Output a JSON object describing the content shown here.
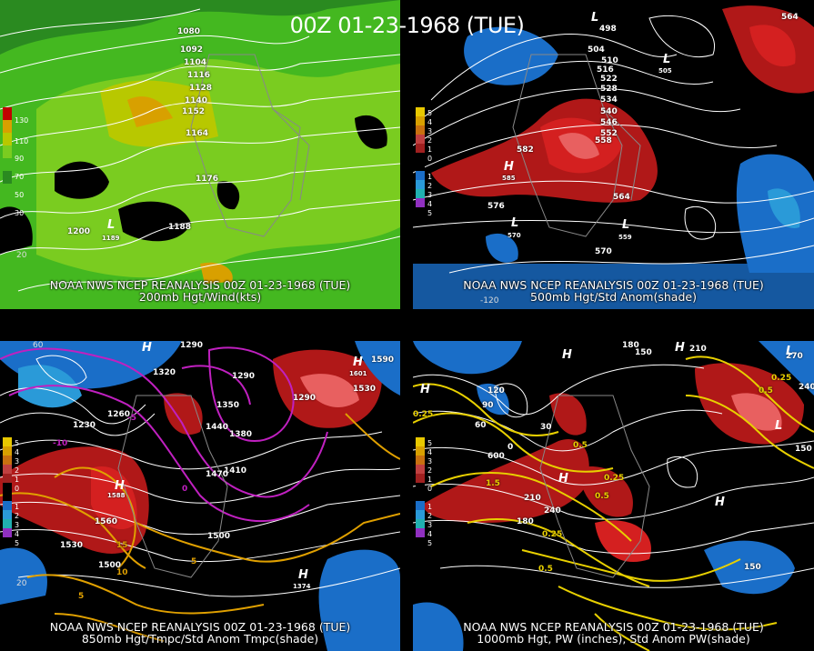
{
  "title": "00Z 01-23-1968 (TUE)",
  "panels": [
    {
      "id": "p200",
      "caption1": "NOAA NWS NCEP REANALYSIS 00Z 01-23-1968 (TUE)",
      "caption2": "200mb Hgt/Wind(kts)",
      "legend": [
        "130",
        "110",
        "90",
        "70",
        "50",
        "30"
      ],
      "legend_colors": [
        "#c00000",
        "#d8a000",
        "#b8c800",
        "#7acc20",
        "#44b820",
        "#2a8a20"
      ],
      "contour_labels": [
        "1080",
        "1092",
        "1104",
        "1116",
        "1128",
        "1140",
        "1152",
        "1164",
        "1176",
        "1188",
        "1200"
      ],
      "lows": [
        "L",
        "L"
      ],
      "low_values": [
        "1189"
      ],
      "lat_labels": [
        "20"
      ]
    },
    {
      "id": "p500",
      "caption1": "NOAA NWS NCEP REANALYSIS 00Z 01-23-1968 (TUE)",
      "caption2": "500mb Hgt/Std Anom(shade)",
      "legend": [
        "5",
        "4",
        "3",
        "2",
        "1",
        "0",
        "1",
        "2",
        "3",
        "4",
        "5"
      ],
      "contour_labels": [
        "498",
        "504",
        "510",
        "516",
        "522",
        "528",
        "534",
        "540",
        "546",
        "552",
        "558",
        "564",
        "570",
        "576",
        "582",
        "564"
      ],
      "highs": [
        "H"
      ],
      "high_values": [
        "585"
      ],
      "lows": [
        "L",
        "L",
        "L",
        "L"
      ],
      "low_values": [
        "505",
        "570",
        "559"
      ],
      "lon_labels": [
        "-120"
      ]
    },
    {
      "id": "p850",
      "caption1": "NOAA NWS NCEP REANALYSIS 00Z 01-23-1968 (TUE)",
      "caption2": "850mb Hgt/Tmpc/Std Anom Tmpc(shade)",
      "legend": [
        "5",
        "4",
        "3",
        "2",
        "1",
        "0",
        "1",
        "2",
        "3",
        "4",
        "5"
      ],
      "contour_labels": [
        "1290",
        "1320",
        "1290",
        "1350",
        "1380",
        "1410",
        "1440",
        "1470",
        "1500",
        "1530",
        "1560",
        "1230",
        "1260",
        "1590",
        "1530",
        "1500",
        "1290"
      ],
      "temp_labels": [
        "0",
        "-5",
        "5",
        "10",
        "15",
        "-10",
        "5"
      ],
      "highs": [
        "H",
        "H",
        "H",
        "H"
      ],
      "high_values": [
        "1588",
        "1601",
        "1374"
      ],
      "lat_labels": [
        "60",
        "20"
      ]
    },
    {
      "id": "p1000",
      "caption1": "NOAA NWS NCEP REANALYSIS 00Z 01-23-1968 (TUE)",
      "caption2": "1000mb Hgt, PW (inches), Std Anom PW(shade)",
      "legend": [
        "5",
        "4",
        "3",
        "2",
        "1",
        "0",
        "1",
        "2",
        "3",
        "4",
        "5"
      ],
      "contour_labels": [
        "180",
        "150",
        "210",
        "240",
        "270",
        "0",
        "30",
        "60",
        "90",
        "120",
        "150",
        "600",
        "210",
        "180",
        "240",
        "150"
      ],
      "pw_labels": [
        "0.25",
        "0.5",
        "0.25",
        "0.5",
        "0.25",
        "0.5",
        "1.5",
        "0.5",
        "0.25"
      ],
      "highs": [
        "H",
        "H",
        "H",
        "H",
        "H"
      ],
      "lows": [
        "L",
        "L"
      ]
    }
  ]
}
